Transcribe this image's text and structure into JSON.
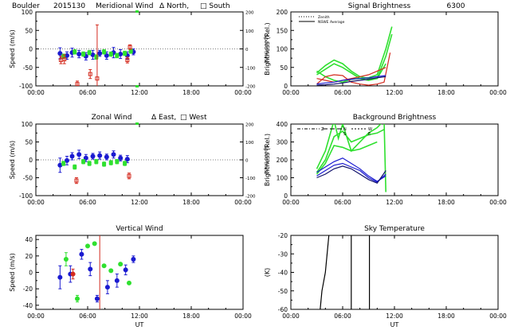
{
  "colors": {
    "red": "#d42a1e",
    "green": "#2fe02f",
    "blue": "#1a1ad0",
    "navy": "#10106a",
    "black": "#000000"
  },
  "chart_data": [
    {
      "id": "meridional",
      "type": "scatter",
      "title_parts": [
        "Boulder",
        "2015130",
        "Meridional Wind",
        "Δ North,",
        "□ South"
      ],
      "ylabel": "Speed (m/s)",
      "y2label": "Speed (m/s)",
      "ylim": [
        -100,
        100
      ],
      "yticks": [
        -100,
        -50,
        0,
        50,
        100
      ],
      "y2lim": [
        -200,
        200
      ],
      "y2ticks": [
        -200,
        -100,
        0,
        100,
        200
      ],
      "xlim": [
        0,
        24
      ],
      "xticks": [
        "00:00",
        "06:00",
        "12:00",
        "18:00",
        "00:00"
      ],
      "xlabel": "",
      "series": [
        {
          "name": "blue",
          "color": "blue",
          "marker": "circle",
          "x": [
            2.8,
            3.6,
            4.2,
            5.0,
            5.8,
            6.6,
            7.4,
            8.2,
            9.0,
            9.8,
            10.6,
            11.3
          ],
          "y": [
            -12,
            -18,
            -10,
            -14,
            -20,
            -16,
            -12,
            -18,
            -10,
            -14,
            -18,
            -8
          ],
          "err": [
            15,
            10,
            12,
            10,
            10,
            12,
            8,
            10,
            14,
            12,
            10,
            8
          ]
        },
        {
          "name": "green",
          "color": "green",
          "marker": "square",
          "x": [
            3.2,
            4.5,
            5.5,
            6.2,
            7.0,
            7.9,
            8.7,
            9.4,
            10.3,
            11.0
          ],
          "y": [
            -20,
            -8,
            -14,
            -10,
            -22,
            -8,
            -14,
            -18,
            -12,
            -6
          ],
          "err": [
            6,
            6,
            6,
            6,
            6,
            6,
            6,
            6,
            6,
            6
          ]
        },
        {
          "name": "red",
          "color": "red",
          "marker": "square",
          "x": [
            2.9,
            3.3,
            4.8,
            6.3,
            7.1,
            10.6,
            10.9
          ],
          "y": [
            -30,
            -28,
            -95,
            -68,
            -80,
            -30,
            5
          ],
          "err": [
            10,
            12,
            8,
            12,
            145,
            8,
            6
          ]
        }
      ]
    },
    {
      "id": "signal",
      "type": "line",
      "title_parts": [
        "Signal Brightness",
        "6300"
      ],
      "ylabel": "Brightness (Rel.)",
      "ylim": [
        0,
        200
      ],
      "yticks": [
        0,
        50,
        100,
        150,
        200
      ],
      "xlim": [
        0,
        24
      ],
      "xticks": [
        "00:00",
        "06:00",
        "12:00",
        "18:00",
        "00:00"
      ],
      "xlabel": "",
      "legend": [
        "Zenith",
        "NSWE Average"
      ],
      "series": [
        {
          "name": "green-1",
          "color": "green",
          "x": [
            3,
            4,
            5,
            6,
            7,
            8,
            9,
            10,
            11,
            11.7
          ],
          "y": [
            40,
            25,
            15,
            10,
            18,
            20,
            22,
            30,
            100,
            160
          ]
        },
        {
          "name": "green-2",
          "color": "green",
          "x": [
            3,
            4,
            5,
            6,
            7,
            8,
            9,
            10,
            11,
            11.7
          ],
          "y": [
            35,
            55,
            70,
            60,
            40,
            25,
            20,
            20,
            80,
            140
          ]
        },
        {
          "name": "green-3",
          "color": "green",
          "x": [
            3,
            4,
            5,
            6,
            7,
            8,
            9,
            10,
            11
          ],
          "y": [
            30,
            45,
            60,
            50,
            35,
            20,
            15,
            20,
            60
          ]
        },
        {
          "name": "red-1",
          "color": "red",
          "x": [
            3,
            4,
            5,
            6,
            7,
            8,
            9,
            10,
            10.8,
            11.5
          ],
          "y": [
            5,
            25,
            30,
            28,
            10,
            5,
            2,
            5,
            10,
            90
          ]
        },
        {
          "name": "red-2",
          "color": "red",
          "x": [
            3,
            4,
            5,
            6,
            7,
            8,
            9,
            10,
            11
          ],
          "y": [
            20,
            15,
            10,
            15,
            20,
            25,
            30,
            40,
            50
          ]
        },
        {
          "name": "nswe-blue",
          "color": "blue",
          "x": [
            3,
            4,
            5,
            6,
            7,
            8,
            9,
            10,
            11
          ],
          "y": [
            5,
            8,
            10,
            15,
            18,
            20,
            22,
            25,
            28
          ]
        },
        {
          "name": "nswe-navy",
          "color": "navy",
          "x": [
            3,
            4,
            5,
            6,
            7,
            8,
            9,
            10,
            11
          ],
          "y": [
            2,
            3,
            5,
            8,
            12,
            15,
            18,
            22,
            25
          ]
        }
      ]
    },
    {
      "id": "zonal",
      "type": "scatter",
      "title_parts": [
        "Zonal Wind",
        "Δ East,",
        "□ West"
      ],
      "ylabel": "Speed (m/s)",
      "y2label": "Speed (m/s)",
      "ylim": [
        -100,
        100
      ],
      "yticks": [
        -100,
        -50,
        0,
        50,
        100
      ],
      "y2lim": [
        -200,
        200
      ],
      "y2ticks": [
        -200,
        -100,
        0,
        100,
        200
      ],
      "xlim": [
        0,
        24
      ],
      "xticks": [
        "00:00",
        "06:00",
        "12:00",
        "18:00",
        "00:00"
      ],
      "xlabel": "",
      "series": [
        {
          "name": "blue",
          "color": "blue",
          "marker": "circle",
          "x": [
            2.8,
            3.6,
            4.2,
            5.0,
            5.8,
            6.6,
            7.4,
            8.2,
            9.0,
            9.8,
            10.6
          ],
          "y": [
            -15,
            -2,
            10,
            15,
            5,
            10,
            12,
            8,
            15,
            5,
            2
          ],
          "err": [
            20,
            12,
            10,
            12,
            10,
            8,
            10,
            8,
            10,
            8,
            10
          ]
        },
        {
          "name": "green",
          "color": "green",
          "marker": "square",
          "x": [
            3.2,
            4.5,
            5.5,
            6.2,
            7.0,
            7.9,
            8.7,
            9.4,
            10.3
          ],
          "y": [
            -10,
            -20,
            -5,
            -10,
            -5,
            -12,
            -8,
            -5,
            -10
          ],
          "err": [
            6,
            6,
            6,
            6,
            6,
            6,
            6,
            6,
            6
          ]
        },
        {
          "name": "red",
          "color": "red",
          "marker": "square",
          "x": [
            4.7,
            10.8
          ],
          "y": [
            -58,
            -45
          ],
          "err": [
            8,
            8
          ]
        }
      ]
    },
    {
      "id": "background",
      "type": "line",
      "title_parts": [
        "Background Brightness"
      ],
      "ylabel": "Brightness (Rel.)",
      "ylim": [
        0,
        400
      ],
      "yticks": [
        0,
        100,
        200,
        300,
        400
      ],
      "xlim": [
        0,
        24
      ],
      "xticks": [
        "00:00",
        "06:00",
        "12:00",
        "18:00",
        "00:00"
      ],
      "xlabel": "",
      "legend": [
        "Z",
        "N",
        "S",
        "W",
        "E"
      ],
      "series": [
        {
          "name": "green-1",
          "color": "green",
          "x": [
            3,
            4,
            5,
            5.5,
            6,
            7,
            8,
            9,
            10,
            10.8,
            11
          ],
          "y": [
            150,
            250,
            420,
            320,
            400,
            250,
            300,
            350,
            380,
            420,
            20
          ]
        },
        {
          "name": "green-2",
          "color": "green",
          "x": [
            3,
            4,
            5,
            6,
            7,
            8,
            9,
            10,
            10.8
          ],
          "y": [
            130,
            200,
            330,
            360,
            300,
            320,
            340,
            350,
            370
          ]
        },
        {
          "name": "green-3",
          "color": "green",
          "x": [
            3,
            4,
            5,
            6,
            7,
            8,
            9,
            10
          ],
          "y": [
            120,
            180,
            280,
            270,
            250,
            260,
            280,
            300
          ]
        },
        {
          "name": "blue-1",
          "color": "blue",
          "x": [
            3,
            4,
            5,
            6,
            7,
            8,
            9,
            10,
            11
          ],
          "y": [
            130,
            160,
            190,
            210,
            180,
            150,
            110,
            80,
            110
          ]
        },
        {
          "name": "blue-2",
          "color": "blue",
          "x": [
            3,
            4,
            5,
            6,
            7,
            8,
            9,
            10,
            11
          ],
          "y": [
            110,
            140,
            170,
            180,
            160,
            140,
            100,
            75,
            120
          ]
        },
        {
          "name": "navy-1",
          "color": "navy",
          "x": [
            3,
            4,
            5,
            6,
            7,
            8,
            9,
            10,
            11
          ],
          "y": [
            100,
            120,
            150,
            165,
            150,
            120,
            90,
            70,
            140
          ]
        }
      ]
    },
    {
      "id": "vertical",
      "type": "scatter",
      "title_parts": [
        "Vertical Wind"
      ],
      "ylabel": "Speed (m/s)",
      "ylim": [
        -45,
        45
      ],
      "yticks": [
        -40,
        -20,
        0,
        20,
        40
      ],
      "xlim": [
        0,
        24
      ],
      "xticks": [
        "00:00",
        "06:00",
        "12:00",
        "18:00",
        "00:00"
      ],
      "xlabel": "UT",
      "vline_x": 7.4,
      "series": [
        {
          "name": "blue",
          "color": "blue",
          "marker": "circle",
          "x": [
            2.8,
            4.0,
            5.3,
            6.3,
            7.1,
            8.3,
            9.4,
            10.4,
            11.3
          ],
          "y": [
            -6,
            -2,
            22,
            4,
            -32,
            -18,
            -10,
            3,
            16
          ],
          "err": [
            14,
            10,
            6,
            8,
            4,
            8,
            8,
            6,
            4
          ]
        },
        {
          "name": "green",
          "color": "green",
          "marker": "circle",
          "x": [
            3.5,
            4.8,
            6.0,
            6.8,
            7.9,
            8.7,
            9.8,
            10.8
          ],
          "y": [
            16,
            -32,
            32,
            35,
            8,
            2,
            10,
            -13
          ],
          "err": [
            8,
            4,
            0,
            0,
            0,
            0,
            0,
            0
          ]
        },
        {
          "name": "red",
          "color": "red",
          "marker": "circle",
          "x": [
            4.3
          ],
          "y": [
            -2
          ],
          "err": [
            6
          ]
        }
      ]
    },
    {
      "id": "sky",
      "type": "line",
      "title_parts": [
        "Sky Temperature"
      ],
      "ylabel": "(K)",
      "ylim": [
        -60,
        -20
      ],
      "yticks": [
        -60,
        -50,
        -40,
        -30,
        -20
      ],
      "xlim": [
        0,
        24
      ],
      "xticks": [
        "00:00",
        "06:00",
        "12:00",
        "18:00",
        "00:00"
      ],
      "xlabel": "UT",
      "series": [
        {
          "name": "sky-1",
          "color": "black",
          "x": [
            3.4,
            3.6,
            4.0,
            4.4
          ],
          "y": [
            -60,
            -50,
            -40,
            -20
          ]
        },
        {
          "name": "sky-2",
          "color": "black",
          "x": [
            7.0,
            7.0
          ],
          "y": [
            -60,
            -20
          ]
        },
        {
          "name": "sky-3",
          "color": "black",
          "x": [
            9.1,
            9.1
          ],
          "y": [
            -60,
            -20
          ]
        }
      ]
    }
  ]
}
